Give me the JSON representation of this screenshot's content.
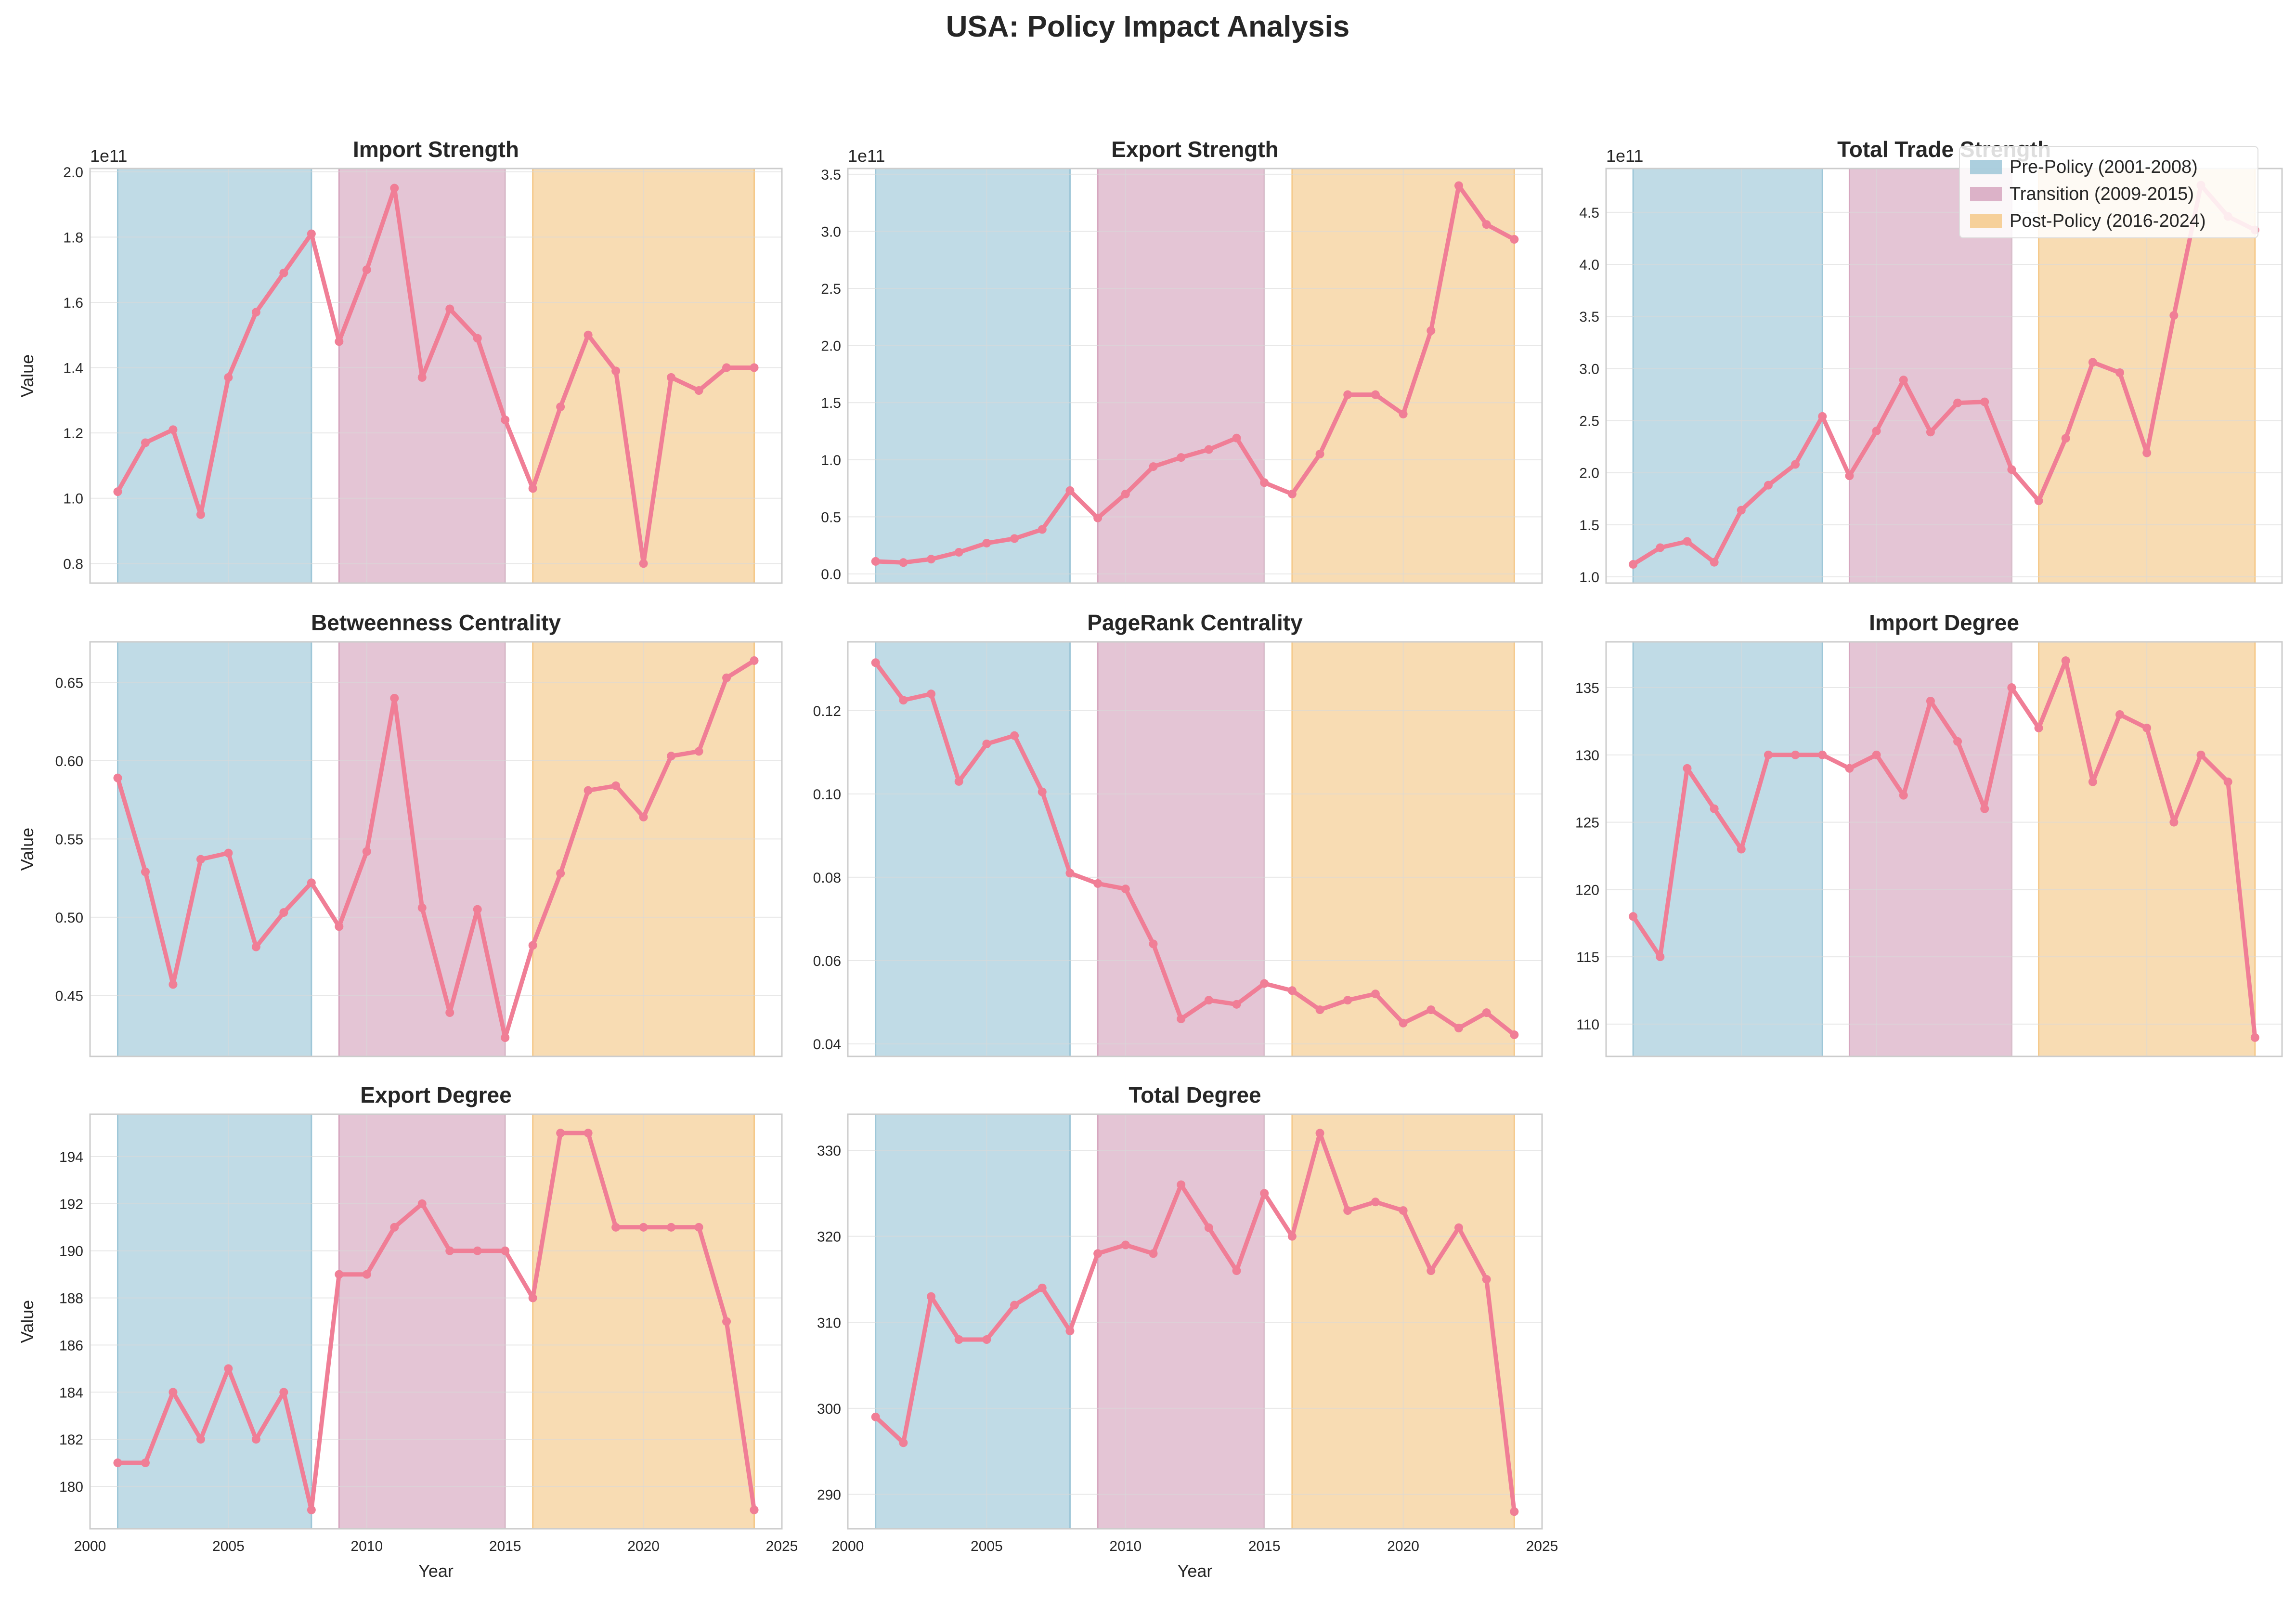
{
  "title": "USA: Policy Impact Analysis",
  "legend": {
    "placement": "top-right",
    "items": [
      {
        "label": "Pre-Policy (2001-2008)",
        "color": "#9ec7d8"
      },
      {
        "label": "Transition (2009-2015)",
        "color": "#d6a6bf"
      },
      {
        "label": "Post-Policy (2016-2024)",
        "color": "#f5c98a"
      }
    ]
  },
  "periods": [
    {
      "start": 2001,
      "end": 2008,
      "color": "#9ec7d8"
    },
    {
      "start": 2009,
      "end": 2015,
      "color": "#d6a6bf"
    },
    {
      "start": 2016,
      "end": 2024,
      "color": "#f5c98a"
    }
  ],
  "line_color": "#f07e96",
  "chart_data": [
    {
      "type": "line",
      "title": "Import Strength",
      "ylabel": "Value",
      "xlabel": "",
      "offset": "1e11",
      "xlim": [
        2000,
        2025
      ],
      "ylim": [
        0.74,
        2.01
      ],
      "grid": true,
      "yticks": [
        {
          "v": 0.8,
          "t": "0.8"
        },
        {
          "v": 1.0,
          "t": "1.0"
        },
        {
          "v": 1.2,
          "t": "1.2"
        },
        {
          "v": 1.4,
          "t": "1.4"
        },
        {
          "v": 1.6,
          "t": "1.6"
        },
        {
          "v": 1.8,
          "t": "1.8"
        },
        {
          "v": 2.0,
          "t": "2.0"
        }
      ],
      "xticks": [],
      "x": [
        2001,
        2002,
        2003,
        2004,
        2005,
        2006,
        2007,
        2008,
        2009,
        2010,
        2011,
        2012,
        2013,
        2014,
        2015,
        2016,
        2017,
        2018,
        2019,
        2020,
        2021,
        2022,
        2023,
        2024
      ],
      "values": [
        1.02,
        1.17,
        1.21,
        0.95,
        1.37,
        1.57,
        1.69,
        1.81,
        1.48,
        1.7,
        1.95,
        1.37,
        1.58,
        1.49,
        1.24,
        1.03,
        1.28,
        1.5,
        1.39,
        0.8,
        1.37,
        1.33,
        1.4,
        1.4
      ]
    },
    {
      "type": "line",
      "title": "Export Strength",
      "ylabel": "",
      "xlabel": "",
      "offset": "1e11",
      "xlim": [
        2000,
        2025
      ],
      "ylim": [
        -0.08,
        3.55
      ],
      "grid": true,
      "yticks": [
        {
          "v": 0.0,
          "t": "0.0"
        },
        {
          "v": 0.5,
          "t": "0.5"
        },
        {
          "v": 1.0,
          "t": "1.0"
        },
        {
          "v": 1.5,
          "t": "1.5"
        },
        {
          "v": 2.0,
          "t": "2.0"
        },
        {
          "v": 2.5,
          "t": "2.5"
        },
        {
          "v": 3.0,
          "t": "3.0"
        },
        {
          "v": 3.5,
          "t": "3.5"
        }
      ],
      "xticks": [],
      "x": [
        2001,
        2002,
        2003,
        2004,
        2005,
        2006,
        2007,
        2008,
        2009,
        2010,
        2011,
        2012,
        2013,
        2014,
        2015,
        2016,
        2017,
        2018,
        2019,
        2020,
        2021,
        2022,
        2023,
        2024
      ],
      "values": [
        0.11,
        0.1,
        0.13,
        0.19,
        0.27,
        0.31,
        0.39,
        0.73,
        0.49,
        0.7,
        0.94,
        1.02,
        1.09,
        1.19,
        0.8,
        0.7,
        1.05,
        1.57,
        1.57,
        1.4,
        2.13,
        3.4,
        3.06,
        2.93
      ]
    },
    {
      "type": "line",
      "title": "Total Trade Strength",
      "ylabel": "",
      "xlabel": "",
      "offset": "1e11",
      "xlim": [
        2000,
        2025
      ],
      "ylim": [
        0.94,
        4.92
      ],
      "grid": true,
      "yticks": [
        {
          "v": 1.0,
          "t": "1.0"
        },
        {
          "v": 1.5,
          "t": "1.5"
        },
        {
          "v": 2.0,
          "t": "2.0"
        },
        {
          "v": 2.5,
          "t": "2.5"
        },
        {
          "v": 3.0,
          "t": "3.0"
        },
        {
          "v": 3.5,
          "t": "3.5"
        },
        {
          "v": 4.0,
          "t": "4.0"
        },
        {
          "v": 4.5,
          "t": "4.5"
        }
      ],
      "xticks": [],
      "x": [
        2001,
        2002,
        2003,
        2004,
        2005,
        2006,
        2007,
        2008,
        2009,
        2010,
        2011,
        2012,
        2013,
        2014,
        2015,
        2016,
        2017,
        2018,
        2019,
        2020,
        2021,
        2022,
        2023,
        2024
      ],
      "values": [
        1.12,
        1.28,
        1.34,
        1.14,
        1.64,
        1.88,
        2.08,
        2.54,
        1.97,
        2.4,
        2.89,
        2.39,
        2.67,
        2.68,
        2.03,
        1.73,
        2.33,
        3.06,
        2.96,
        2.19,
        3.51,
        4.76,
        4.46,
        4.33
      ]
    },
    {
      "type": "line",
      "title": "Betweenness Centrality",
      "ylabel": "Value",
      "xlabel": "",
      "offset": "",
      "xlim": [
        2000,
        2025
      ],
      "ylim": [
        0.411,
        0.676
      ],
      "grid": true,
      "yticks": [
        {
          "v": 0.45,
          "t": "0.45"
        },
        {
          "v": 0.5,
          "t": "0.50"
        },
        {
          "v": 0.55,
          "t": "0.55"
        },
        {
          "v": 0.6,
          "t": "0.60"
        },
        {
          "v": 0.65,
          "t": "0.65"
        }
      ],
      "xticks": [],
      "x": [
        2001,
        2002,
        2003,
        2004,
        2005,
        2006,
        2007,
        2008,
        2009,
        2010,
        2011,
        2012,
        2013,
        2014,
        2015,
        2016,
        2017,
        2018,
        2019,
        2020,
        2021,
        2022,
        2023,
        2024
      ],
      "values": [
        0.589,
        0.529,
        0.457,
        0.537,
        0.541,
        0.481,
        0.503,
        0.522,
        0.494,
        0.542,
        0.64,
        0.506,
        0.439,
        0.505,
        0.423,
        0.482,
        0.528,
        0.581,
        0.584,
        0.564,
        0.603,
        0.606,
        0.653,
        0.664
      ]
    },
    {
      "type": "line",
      "title": "PageRank Centrality",
      "ylabel": "",
      "xlabel": "",
      "offset": "",
      "xlim": [
        2000,
        2025
      ],
      "ylim": [
        0.037,
        0.1365
      ],
      "grid": true,
      "yticks": [
        {
          "v": 0.04,
          "t": "0.04"
        },
        {
          "v": 0.06,
          "t": "0.06"
        },
        {
          "v": 0.08,
          "t": "0.08"
        },
        {
          "v": 0.1,
          "t": "0.10"
        },
        {
          "v": 0.12,
          "t": "0.12"
        }
      ],
      "xticks": [],
      "x": [
        2001,
        2002,
        2003,
        2004,
        2005,
        2006,
        2007,
        2008,
        2009,
        2010,
        2011,
        2012,
        2013,
        2014,
        2015,
        2016,
        2017,
        2018,
        2019,
        2020,
        2021,
        2022,
        2023,
        2024
      ],
      "values": [
        0.1315,
        0.1225,
        0.124,
        0.103,
        0.112,
        0.114,
        0.1005,
        0.081,
        0.0785,
        0.0772,
        0.064,
        0.046,
        0.0505,
        0.0495,
        0.0545,
        0.0528,
        0.0482,
        0.0505,
        0.052,
        0.045,
        0.0482,
        0.0438,
        0.0475,
        0.0422
      ]
    },
    {
      "type": "line",
      "title": "Import Degree",
      "ylabel": "",
      "xlabel": "",
      "offset": "",
      "xlim": [
        2000,
        2025
      ],
      "ylim": [
        107.6,
        138.4
      ],
      "grid": true,
      "yticks": [
        {
          "v": 110,
          "t": "110"
        },
        {
          "v": 115,
          "t": "115"
        },
        {
          "v": 120,
          "t": "120"
        },
        {
          "v": 125,
          "t": "125"
        },
        {
          "v": 130,
          "t": "130"
        },
        {
          "v": 135,
          "t": "135"
        }
      ],
      "xticks": [],
      "x": [
        2001,
        2002,
        2003,
        2004,
        2005,
        2006,
        2007,
        2008,
        2009,
        2010,
        2011,
        2012,
        2013,
        2014,
        2015,
        2016,
        2017,
        2018,
        2019,
        2020,
        2021,
        2022,
        2023,
        2024
      ],
      "values": [
        118,
        115,
        129,
        126,
        123,
        130,
        130,
        130,
        129,
        130,
        127,
        134,
        131,
        126,
        135,
        132,
        137,
        128,
        133,
        132,
        125,
        130,
        128,
        109
      ]
    },
    {
      "type": "line",
      "title": "Export Degree",
      "ylabel": "Value",
      "xlabel": "Year",
      "offset": "",
      "xlim": [
        2000,
        2025
      ],
      "ylim": [
        178.2,
        195.8
      ],
      "grid": true,
      "yticks": [
        {
          "v": 180,
          "t": "180"
        },
        {
          "v": 182,
          "t": "182"
        },
        {
          "v": 184,
          "t": "184"
        },
        {
          "v": 186,
          "t": "186"
        },
        {
          "v": 188,
          "t": "188"
        },
        {
          "v": 190,
          "t": "190"
        },
        {
          "v": 192,
          "t": "192"
        },
        {
          "v": 194,
          "t": "194"
        }
      ],
      "xticks": [
        {
          "v": 2000,
          "t": "2000"
        },
        {
          "v": 2005,
          "t": "2005"
        },
        {
          "v": 2010,
          "t": "2010"
        },
        {
          "v": 2015,
          "t": "2015"
        },
        {
          "v": 2020,
          "t": "2020"
        },
        {
          "v": 2025,
          "t": "2025"
        }
      ],
      "x": [
        2001,
        2002,
        2003,
        2004,
        2005,
        2006,
        2007,
        2008,
        2009,
        2010,
        2011,
        2012,
        2013,
        2014,
        2015,
        2016,
        2017,
        2018,
        2019,
        2020,
        2021,
        2022,
        2023,
        2024
      ],
      "values": [
        181,
        181,
        184,
        182,
        185,
        182,
        184,
        179,
        189,
        189,
        191,
        192,
        190,
        190,
        190,
        188,
        195,
        195,
        191,
        191,
        191,
        191,
        187,
        179
      ]
    },
    {
      "type": "line",
      "title": "Total Degree",
      "ylabel": "",
      "xlabel": "Year",
      "offset": "",
      "xlim": [
        2000,
        2025
      ],
      "ylim": [
        286.0,
        334.2
      ],
      "grid": true,
      "yticks": [
        {
          "v": 290,
          "t": "290"
        },
        {
          "v": 300,
          "t": "300"
        },
        {
          "v": 310,
          "t": "310"
        },
        {
          "v": 320,
          "t": "320"
        },
        {
          "v": 330,
          "t": "330"
        }
      ],
      "xticks": [
        {
          "v": 2000,
          "t": "2000"
        },
        {
          "v": 2005,
          "t": "2005"
        },
        {
          "v": 2010,
          "t": "2010"
        },
        {
          "v": 2015,
          "t": "2015"
        },
        {
          "v": 2020,
          "t": "2020"
        },
        {
          "v": 2025,
          "t": "2025"
        }
      ],
      "x": [
        2001,
        2002,
        2003,
        2004,
        2005,
        2006,
        2007,
        2008,
        2009,
        2010,
        2011,
        2012,
        2013,
        2014,
        2015,
        2016,
        2017,
        2018,
        2019,
        2020,
        2021,
        2022,
        2023,
        2024
      ],
      "values": [
        299,
        296,
        313,
        308,
        308,
        312,
        314,
        309,
        318,
        319,
        318,
        326,
        321,
        316,
        325,
        320,
        332,
        323,
        324,
        323,
        316,
        321,
        315,
        288
      ]
    }
  ]
}
